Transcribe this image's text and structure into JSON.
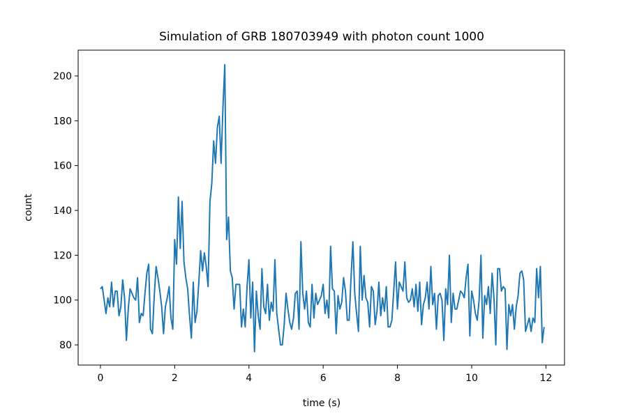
{
  "chart_data": {
    "type": "line",
    "title": "Simulation of GRB 180703949 with photon count 1000",
    "xlabel": "time (s)",
    "ylabel": "count",
    "color": "#1f77b4",
    "xlim": [
      -0.6,
      12.5
    ],
    "ylim": [
      71,
      211.5
    ],
    "xticks": [
      0,
      2,
      4,
      6,
      8,
      10,
      12
    ],
    "yticks": [
      80,
      100,
      120,
      140,
      160,
      180,
      200
    ],
    "x": [
      0,
      0.05,
      0.1,
      0.15,
      0.2,
      0.25,
      0.3,
      0.35,
      0.4,
      0.45,
      0.5,
      0.55,
      0.6,
      0.65,
      0.7,
      0.75,
      0.8,
      0.85,
      0.9,
      0.95,
      1,
      1.05,
      1.1,
      1.15,
      1.2,
      1.25,
      1.3,
      1.35,
      1.4,
      1.45,
      1.5,
      1.55,
      1.6,
      1.65,
      1.7,
      1.75,
      1.8,
      1.85,
      1.9,
      1.95,
      2,
      2.05,
      2.1,
      2.15,
      2.2,
      2.25,
      2.3,
      2.35,
      2.4,
      2.45,
      2.5,
      2.55,
      2.6,
      2.65,
      2.7,
      2.75,
      2.8,
      2.85,
      2.9,
      2.95,
      3,
      3.05,
      3.1,
      3.15,
      3.2,
      3.25,
      3.3,
      3.35,
      3.4,
      3.45,
      3.5,
      3.55,
      3.6,
      3.65,
      3.7,
      3.75,
      3.8,
      3.85,
      3.9,
      3.95,
      4,
      4.05,
      4.1,
      4.15,
      4.2,
      4.25,
      4.3,
      4.35,
      4.4,
      4.45,
      4.5,
      4.55,
      4.6,
      4.65,
      4.7,
      4.75,
      4.8,
      4.85,
      4.9,
      4.95,
      5,
      5.05,
      5.1,
      5.15,
      5.2,
      5.25,
      5.3,
      5.35,
      5.4,
      5.45,
      5.5,
      5.55,
      5.6,
      5.65,
      5.7,
      5.75,
      5.8,
      5.85,
      5.9,
      5.95,
      6,
      6.05,
      6.1,
      6.15,
      6.2,
      6.25,
      6.3,
      6.35,
      6.4,
      6.45,
      6.5,
      6.55,
      6.6,
      6.65,
      6.7,
      6.75,
      6.8,
      6.85,
      6.9,
      6.95,
      7,
      7.05,
      7.1,
      7.15,
      7.2,
      7.25,
      7.3,
      7.35,
      7.4,
      7.45,
      7.5,
      7.55,
      7.6,
      7.65,
      7.7,
      7.75,
      7.8,
      7.85,
      7.9,
      7.95,
      8,
      8.05,
      8.1,
      8.15,
      8.2,
      8.25,
      8.3,
      8.35,
      8.4,
      8.45,
      8.5,
      8.55,
      8.6,
      8.65,
      8.7,
      8.75,
      8.8,
      8.85,
      8.9,
      8.95,
      9,
      9.05,
      9.1,
      9.15,
      9.2,
      9.25,
      9.3,
      9.35,
      9.4,
      9.45,
      9.5,
      9.55,
      9.6,
      9.65,
      9.7,
      9.75,
      9.8,
      9.85,
      9.9,
      9.95,
      10,
      10.05,
      10.1,
      10.15,
      10.2,
      10.25,
      10.3,
      10.35,
      10.4,
      10.45,
      10.5,
      10.55,
      10.6,
      10.65,
      10.7,
      10.75,
      10.8,
      10.85,
      10.9,
      10.95,
      11,
      11.05,
      11.1,
      11.15,
      11.2,
      11.25,
      11.3,
      11.35,
      11.4,
      11.45,
      11.5,
      11.55,
      11.6,
      11.65,
      11.7,
      11.75,
      11.8,
      11.85,
      11.9,
      11.95
    ],
    "values": [
      105,
      106,
      100,
      94,
      101,
      97,
      108,
      97,
      104,
      104,
      93,
      97,
      109,
      101,
      82,
      96,
      105,
      103,
      101,
      100,
      110,
      90,
      94,
      93,
      103,
      112,
      116,
      87,
      85,
      102,
      115,
      110,
      104,
      97,
      85,
      97,
      101,
      106,
      92,
      87,
      127,
      116,
      146,
      123,
      144,
      117,
      110,
      105,
      93,
      83,
      108,
      90,
      95,
      108,
      122,
      113,
      121,
      115,
      106,
      144,
      152,
      171,
      161,
      177,
      182,
      161,
      186,
      205,
      127,
      137,
      113,
      110,
      96,
      107,
      107,
      107,
      88,
      96,
      88,
      106,
      118,
      92,
      108,
      77,
      104,
      93,
      87,
      114,
      97,
      94,
      107,
      91,
      99,
      95,
      118,
      94,
      87,
      80,
      80,
      89,
      103,
      96,
      90,
      87,
      92,
      103,
      104,
      87,
      126,
      103,
      96,
      104,
      90,
      88,
      107,
      92,
      103,
      98,
      100,
      102,
      107,
      94,
      100,
      92,
      124,
      105,
      104,
      85,
      102,
      96,
      99,
      110,
      104,
      91,
      91,
      110,
      126,
      103,
      94,
      86,
      124,
      100,
      111,
      101,
      99,
      88,
      106,
      104,
      89,
      95,
      108,
      93,
      101,
      95,
      106,
      88,
      88,
      91,
      104,
      117,
      96,
      108,
      106,
      104,
      117,
      101,
      99,
      100,
      105,
      97,
      107,
      95,
      108,
      89,
      98,
      101,
      108,
      96,
      115,
      98,
      103,
      87,
      102,
      103,
      100,
      82,
      105,
      98,
      120,
      90,
      103,
      96,
      96,
      100,
      104,
      103,
      101,
      110,
      116,
      84,
      104,
      100,
      94,
      91,
      100,
      120,
      83,
      102,
      98,
      106,
      94,
      112,
      101,
      80,
      114,
      114,
      104,
      106,
      105,
      78,
      98,
      93,
      98,
      87,
      97,
      102,
      112,
      113,
      109,
      86,
      89,
      92,
      86,
      92,
      90,
      114,
      101,
      115,
      81,
      88
    ]
  }
}
